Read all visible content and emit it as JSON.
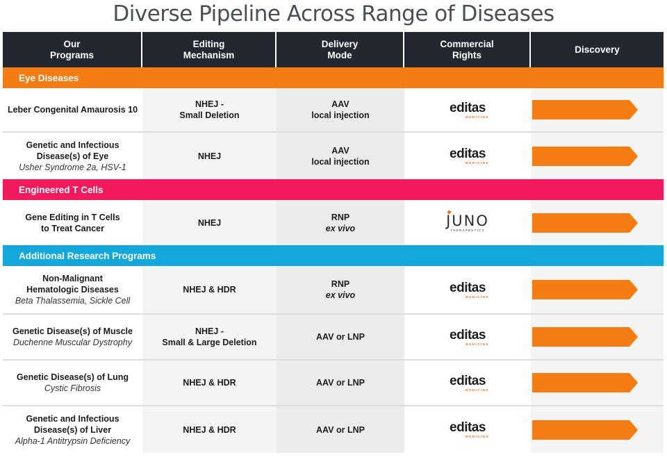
{
  "title": "Diverse Pipeline Across Range of Diseases",
  "headers": {
    "programs": "Our\nPrograms",
    "editing": "Editing\nMechanism",
    "delivery": "Delivery\nMode",
    "rights": "Commercial\nRights",
    "discovery": "Discovery"
  },
  "colors": {
    "header_bg": "#232830",
    "eye": "#f57c12",
    "tcell": "#f21a5c",
    "research": "#12a8dc",
    "arrow": "#f57c12"
  },
  "logos": {
    "editas_word": "editas",
    "editas_sub": "MEDICINE",
    "juno_word": "JUNO",
    "juno_sub": "THERAPEUTICS"
  },
  "sections": {
    "eye": "Eye Diseases",
    "tcell": "Engineered T Cells",
    "research": "Additional Research Programs"
  },
  "rows": [
    {
      "program": "Leber Congenital Amaurosis 10",
      "program_sub": "",
      "editing": "NHEJ -\nSmall Deletion",
      "delivery": "AAV",
      "delivery_sub": "local injection",
      "partner": "editas",
      "discovery_progress": 1.0
    },
    {
      "program": "Genetic and Infectious\nDisease(s) of Eye",
      "program_sub": "Usher Syndrome 2a, HSV-1",
      "editing": "NHEJ",
      "delivery": "AAV",
      "delivery_sub": "local injection",
      "partner": "editas",
      "discovery_progress": 1.0
    },
    {
      "program": "Gene Editing in T Cells\nto Treat Cancer",
      "program_sub": "",
      "editing": "NHEJ",
      "delivery": "RNP",
      "delivery_sub": "ex vivo",
      "partner": "juno",
      "discovery_progress": 1.0
    },
    {
      "program": "Non-Malignant\nHematologic Diseases",
      "program_sub": "Beta Thalassemia, Sickle Cell",
      "editing": "NHEJ & HDR",
      "delivery": "RNP",
      "delivery_sub": "ex vivo",
      "partner": "editas",
      "discovery_progress": 1.0
    },
    {
      "program": "Genetic Disease(s) of Muscle",
      "program_sub": "Duchenne Muscular Dystrophy",
      "editing": "NHEJ -\nSmall  & Large Deletion",
      "delivery": "AAV or LNP",
      "delivery_sub": "",
      "partner": "editas",
      "discovery_progress": 1.0
    },
    {
      "program": "Genetic Disease(s) of Lung",
      "program_sub": "Cystic Fibrosis",
      "editing": "NHEJ & HDR",
      "delivery": "AAV or LNP",
      "delivery_sub": "",
      "partner": "editas",
      "discovery_progress": 1.0
    },
    {
      "program": "Genetic and Infectious\nDisease(s) of Liver",
      "program_sub": "Alpha-1 Antitrypsin Deficiency",
      "editing": "NHEJ & HDR",
      "delivery": "AAV or LNP",
      "delivery_sub": "",
      "partner": "editas",
      "discovery_progress": 1.0
    }
  ]
}
